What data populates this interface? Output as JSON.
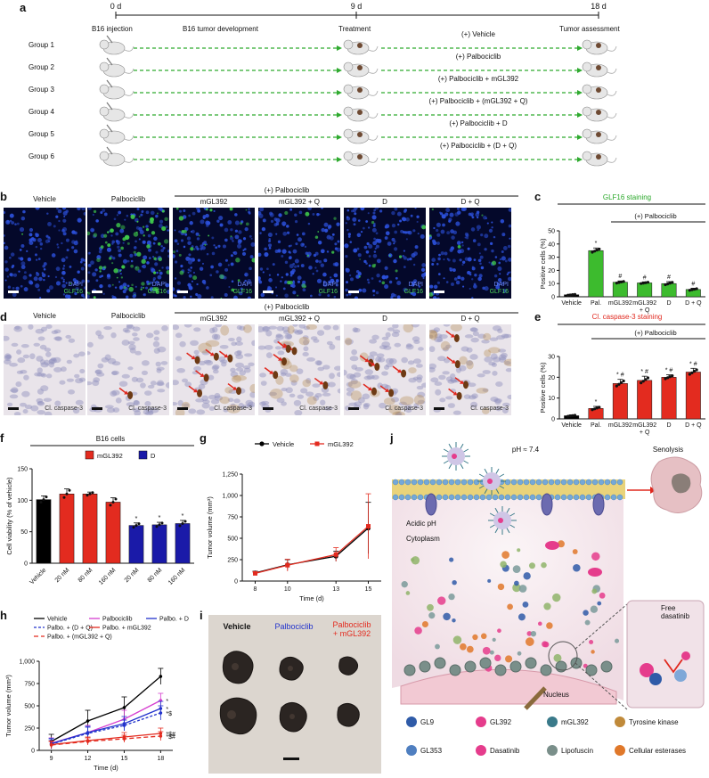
{
  "panel_labels": [
    "a",
    "b",
    "c",
    "d",
    "e",
    "f",
    "g",
    "h",
    "i",
    "j"
  ],
  "timeline": {
    "days": [
      "0 d",
      "9 d",
      "18 d"
    ],
    "phases": [
      "B16 injection",
      "B16 tumor development",
      "Treatment",
      "Tumor assessment"
    ],
    "groups": [
      {
        "name": "Group 1",
        "treatment": "(+) Vehicle"
      },
      {
        "name": "Group 2",
        "treatment": "(+) Palbociclib"
      },
      {
        "name": "Group 3",
        "treatment": "(+) Palbociclib + mGL392"
      },
      {
        "name": "Group 4",
        "treatment": "(+) Palbociclib + (mGL392 + Q)"
      },
      {
        "name": "Group 5",
        "treatment": "(+) Palbociclib + D"
      },
      {
        "name": "Group 6",
        "treatment": "(+) Palbociclib + (D + Q)"
      }
    ]
  },
  "fluor": {
    "header": "(+) Palbociclib",
    "columns": [
      "Vehicle",
      "Palbociclib",
      "mGL392",
      "mGL392 + Q",
      "D",
      "D + Q"
    ],
    "stain1": "DAPI",
    "stain2": "GLF16",
    "colors": {
      "dapi": "#2b4fd8",
      "glf16": "#3fc94a",
      "bg": "#04082a"
    }
  },
  "ihc": {
    "header": "(+) Palbociclib",
    "columns": [
      "Vehicle",
      "Palbociclib",
      "mGL392",
      "mGL392 + Q",
      "D",
      "D + Q"
    ],
    "stain": "Cl. caspase-3",
    "arrow_color": "#e0281e"
  },
  "chart_data": [
    {
      "panel": "c",
      "type": "bar",
      "title": "GLF16 staining",
      "title_color": "#2aa82a",
      "bracket_label": "(+) Palbociclib",
      "ylabel": "Positive cells (%)",
      "ylim": [
        0,
        50
      ],
      "yticks": [
        0,
        10,
        20,
        30,
        40,
        50
      ],
      "categories": [
        "Vehicle",
        "Pal.",
        "mGL392",
        "mGL392 + Q",
        "D",
        "D + Q"
      ],
      "values": [
        1.5,
        35,
        11,
        10.5,
        10,
        5.5
      ],
      "errors": [
        0.5,
        2,
        1,
        0.8,
        1.5,
        1
      ],
      "colors": [
        "#000000",
        "#3dbb2e",
        "#3dbb2e",
        "#3dbb2e",
        "#3dbb2e",
        "#3dbb2e"
      ],
      "marks": [
        "",
        "*",
        "#",
        "#",
        "#",
        "#"
      ]
    },
    {
      "panel": "e",
      "type": "bar",
      "title": "Cl. caspase-3 staining",
      "title_color": "#e0281e",
      "bracket_label": "(+) Palbociclib",
      "ylabel": "Positive cells (%)",
      "ylim": [
        0,
        30
      ],
      "yticks": [
        0,
        10,
        20,
        30
      ],
      "categories": [
        "Vehicle",
        "Pal.",
        "mGL392",
        "mGL392 + Q",
        "D",
        "D + Q"
      ],
      "values": [
        1.5,
        5,
        17,
        18.5,
        20,
        22.5
      ],
      "errors": [
        0.4,
        1,
        2,
        2,
        1.2,
        1.8
      ],
      "colors": [
        "#000000",
        "#e32b1f",
        "#e32b1f",
        "#e32b1f",
        "#e32b1f",
        "#e32b1f"
      ],
      "marks": [
        "",
        "*",
        "* #",
        "* #",
        "* #",
        "* #"
      ]
    },
    {
      "panel": "f",
      "type": "bar",
      "title": "B16 cells",
      "ylabel": "Cell viability (% of vehicle)",
      "ylim": [
        0,
        150
      ],
      "yticks": [
        0,
        50,
        100,
        150
      ],
      "legend": [
        {
          "name": "mGL392",
          "color": "#e32b1f"
        },
        {
          "name": "D",
          "color": "#1a1aa8"
        }
      ],
      "categories": [
        "Vehicle",
        "20 nM",
        "80 nM",
        "160 nM",
        "20 nM",
        "80 nM",
        "160 nM"
      ],
      "values": [
        101,
        110,
        110,
        97,
        60,
        61,
        63
      ],
      "errors": [
        6,
        8,
        3,
        7,
        4,
        4,
        5
      ],
      "colors": [
        "#000000",
        "#e32b1f",
        "#e32b1f",
        "#e32b1f",
        "#1a1aa8",
        "#1a1aa8",
        "#1a1aa8"
      ],
      "marks": [
        "",
        "",
        "",
        "",
        "*",
        "*",
        "*"
      ]
    },
    {
      "panel": "g",
      "type": "line",
      "ylabel": "Tumor volume (mm³)",
      "xlabel": "Time (d)",
      "x": [
        8,
        10,
        13,
        15
      ],
      "ylim": [
        0,
        1250
      ],
      "yticks": [
        0,
        250,
        500,
        750,
        1000,
        1250
      ],
      "ytick_labels": [
        "0",
        "250",
        "500",
        "750",
        "1,000",
        "1,250"
      ],
      "series": [
        {
          "name": "Vehicle",
          "color": "#000000",
          "values": [
            95,
            190,
            290,
            620
          ],
          "errors": [
            20,
            60,
            60,
            300
          ]
        },
        {
          "name": "mGL392",
          "color": "#e32b1f",
          "values": [
            90,
            185,
            310,
            640
          ],
          "errors": [
            15,
            70,
            80,
            380
          ]
        }
      ]
    },
    {
      "panel": "h",
      "type": "line",
      "ylabel": "Tumor volume (mm³)",
      "xlabel": "Time (d)",
      "x": [
        9,
        12,
        15,
        18
      ],
      "ylim": [
        0,
        1000
      ],
      "yticks": [
        0,
        250,
        500,
        750,
        1000
      ],
      "ytick_labels": [
        "0",
        "250",
        "500",
        "750",
        "1,000"
      ],
      "series": [
        {
          "name": "Vehicle",
          "color": "#000000",
          "dash": "",
          "values": [
            100,
            330,
            480,
            830
          ],
          "errors": [
            80,
            120,
            120,
            90
          ]
        },
        {
          "name": "Palbociclib",
          "color": "#d63fd0",
          "dash": "",
          "values": [
            80,
            200,
            350,
            560
          ],
          "errors": [
            60,
            80,
            100,
            80
          ]
        },
        {
          "name": "Palbo. + D",
          "color": "#2233cc",
          "dash": "",
          "values": [
            75,
            200,
            300,
            470
          ],
          "errors": [
            60,
            70,
            80,
            80
          ]
        },
        {
          "name": "Palbo. + (D + Q)",
          "color": "#2233cc",
          "dash": "3,2",
          "values": [
            70,
            190,
            280,
            420
          ],
          "errors": [
            50,
            70,
            60,
            80
          ]
        },
        {
          "name": "Palbo. + mGL392",
          "color": "#e32b1f",
          "dash": "",
          "values": [
            65,
            110,
            150,
            190
          ],
          "errors": [
            40,
            40,
            50,
            60
          ]
        },
        {
          "name": "Palbo. + (mGL392 + Q)",
          "color": "#e32b1f",
          "dash": "5,3",
          "values": [
            60,
            100,
            130,
            160
          ],
          "errors": [
            40,
            40,
            40,
            50
          ]
        }
      ],
      "end_marks": [
        {
          "series": 1,
          "text": "*"
        },
        {
          "series": 2,
          "text": "*"
        },
        {
          "series": 3,
          "text": "*$"
        },
        {
          "series": 4,
          "text": "*$#"
        },
        {
          "series": 5,
          "text": "*$#"
        }
      ]
    }
  ],
  "tumors": {
    "labels": [
      {
        "text": "Vehicle",
        "color": "#111111"
      },
      {
        "text": "Palbociclib",
        "color": "#2233cc"
      },
      {
        "text": "Palbociclib\n+ mGL392",
        "color": "#e32b1f"
      }
    ]
  },
  "mechanism": {
    "ph_label": "pH ≈ 7.4",
    "senolysis": "Senolysis",
    "acidic": "Acidic pH",
    "cytoplasm": "Cytoplasm",
    "nucleus": "Nucleus",
    "free_dasatinib": "Free\ndasatinib",
    "legend": [
      {
        "name": "GL9",
        "icon": "gl9-icon"
      },
      {
        "name": "GL392",
        "icon": "gl392-icon"
      },
      {
        "name": "mGL392",
        "icon": "mgl392-icon"
      },
      {
        "name": "Tyrosine kinase",
        "icon": "tyrosine-kinase-icon"
      },
      {
        "name": "GL353",
        "icon": "gl353-icon"
      },
      {
        "name": "Dasatinib",
        "icon": "dasatinib-icon"
      },
      {
        "name": "Lipofuscin",
        "icon": "lipofuscin-icon"
      },
      {
        "name": "Cellular esterases",
        "icon": "esterase-icon"
      }
    ]
  }
}
